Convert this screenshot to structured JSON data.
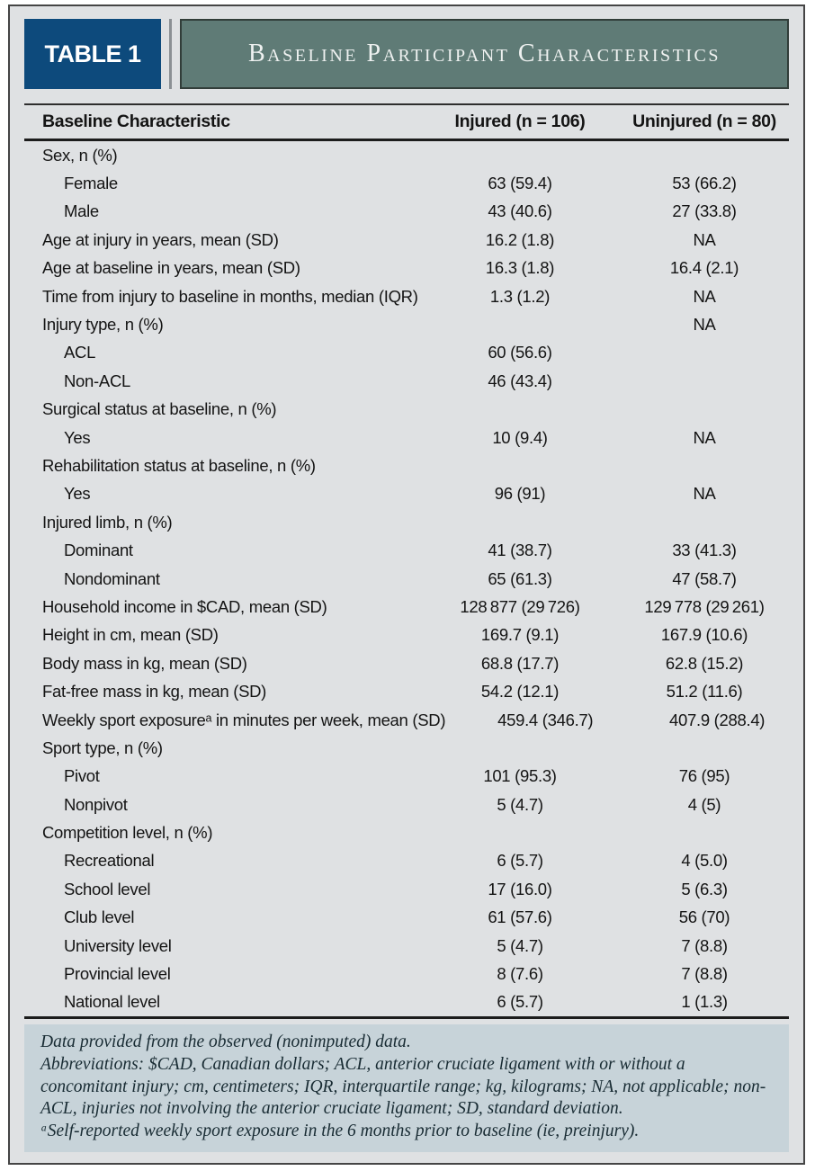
{
  "header": {
    "table_label": "TABLE 1",
    "title": "Baseline Participant Characteristics"
  },
  "table": {
    "columns": [
      "Baseline Characteristic",
      "Injured (n = 106)",
      "Uninjured (n = 80)"
    ],
    "rows": [
      {
        "label": "Sex, n (%)",
        "indent": false,
        "injured": "",
        "uninjured": ""
      },
      {
        "label": "Female",
        "indent": true,
        "injured": "63 (59.4)",
        "uninjured": "53 (66.2)"
      },
      {
        "label": "Male",
        "indent": true,
        "injured": "43 (40.6)",
        "uninjured": "27 (33.8)"
      },
      {
        "label": "Age at injury in years, mean (SD)",
        "indent": false,
        "injured": "16.2 (1.8)",
        "uninjured": "NA"
      },
      {
        "label": "Age at baseline in years, mean (SD)",
        "indent": false,
        "injured": "16.3 (1.8)",
        "uninjured": "16.4 (2.1)"
      },
      {
        "label": "Time from injury to baseline in months, median (IQR)",
        "indent": false,
        "injured": "1.3 (1.2)",
        "uninjured": "NA"
      },
      {
        "label": "Injury type, n (%)",
        "indent": false,
        "injured": "",
        "uninjured": "NA"
      },
      {
        "label": "ACL",
        "indent": true,
        "injured": "60 (56.6)",
        "uninjured": ""
      },
      {
        "label": "Non-ACL",
        "indent": true,
        "injured": "46 (43.4)",
        "uninjured": ""
      },
      {
        "label": "Surgical status at baseline, n (%)",
        "indent": false,
        "injured": "",
        "uninjured": ""
      },
      {
        "label": "Yes",
        "indent": true,
        "injured": "10 (9.4)",
        "uninjured": "NA"
      },
      {
        "label": "Rehabilitation status at baseline, n (%)",
        "indent": false,
        "injured": "",
        "uninjured": ""
      },
      {
        "label": "Yes",
        "indent": true,
        "injured": "96 (91)",
        "uninjured": "NA"
      },
      {
        "label": "Injured limb, n (%)",
        "indent": false,
        "injured": "",
        "uninjured": ""
      },
      {
        "label": "Dominant",
        "indent": true,
        "injured": "41 (38.7)",
        "uninjured": "33 (41.3)"
      },
      {
        "label": "Nondominant",
        "indent": true,
        "injured": "65 (61.3)",
        "uninjured": "47 (58.7)"
      },
      {
        "label": "Household income in $CAD, mean (SD)",
        "indent": false,
        "injured": "128 877 (29 726)",
        "uninjured": "129 778 (29 261)"
      },
      {
        "label": "Height in cm, mean (SD)",
        "indent": false,
        "injured": "169.7 (9.1)",
        "uninjured": "167.9 (10.6)"
      },
      {
        "label": "Body mass in kg, mean (SD)",
        "indent": false,
        "injured": "68.8 (17.7)",
        "uninjured": "62.8 (15.2)"
      },
      {
        "label": "Fat-free mass in kg, mean (SD)",
        "indent": false,
        "injured": "54.2 (12.1)",
        "uninjured": "51.2 (11.6)"
      },
      {
        "label": "Weekly sport exposureᵃ in minutes per week, mean (SD)",
        "indent": false,
        "injured": "459.4 (346.7)",
        "uninjured": "407.9 (288.4)"
      },
      {
        "label": "Sport type, n (%)",
        "indent": false,
        "injured": "",
        "uninjured": ""
      },
      {
        "label": "Pivot",
        "indent": true,
        "injured": "101 (95.3)",
        "uninjured": "76 (95)"
      },
      {
        "label": "Nonpivot",
        "indent": true,
        "injured": "5 (4.7)",
        "uninjured": "4 (5)"
      },
      {
        "label": "Competition level, n (%)",
        "indent": false,
        "injured": "",
        "uninjured": ""
      },
      {
        "label": "Recreational",
        "indent": true,
        "injured": "6 (5.7)",
        "uninjured": "4 (5.0)"
      },
      {
        "label": "School level",
        "indent": true,
        "injured": "17 (16.0)",
        "uninjured": "5 (6.3)"
      },
      {
        "label": "Club level",
        "indent": true,
        "injured": "61 (57.6)",
        "uninjured": "56 (70)"
      },
      {
        "label": "University level",
        "indent": true,
        "injured": "5 (4.7)",
        "uninjured": "7 (8.8)"
      },
      {
        "label": "Provincial level",
        "indent": true,
        "injured": "8 (7.6)",
        "uninjured": "7 (8.8)"
      },
      {
        "label": "National level",
        "indent": true,
        "injured": "6 (5.7)",
        "uninjured": "1 (1.3)"
      }
    ]
  },
  "footnotes": {
    "data_note": "Data provided from the observed (nonimputed) data.",
    "abbreviations": "Abbreviations: $CAD, Canadian dollars; ACL, anterior cruciate ligament with or without a concomitant injury; cm, centimeters; IQR, interquartile range; kg, kilograms; NA, not applicable; non-ACL, injuries not involving the anterior cruciate ligament; SD, standard deviation.",
    "exposure_note": "ᵃSelf-reported weekly sport exposure in the 6 months prior to baseline (ie, preinjury)."
  },
  "colors": {
    "navy": "#0d4a7c",
    "sage": "#5f7b76",
    "panel-bg": "#dfe1e3",
    "note-bg": "#c7d3d9",
    "frame-border": "#454545",
    "ink": "#141414",
    "note-ink": "#182b33",
    "rule": "#1c1c1c"
  }
}
